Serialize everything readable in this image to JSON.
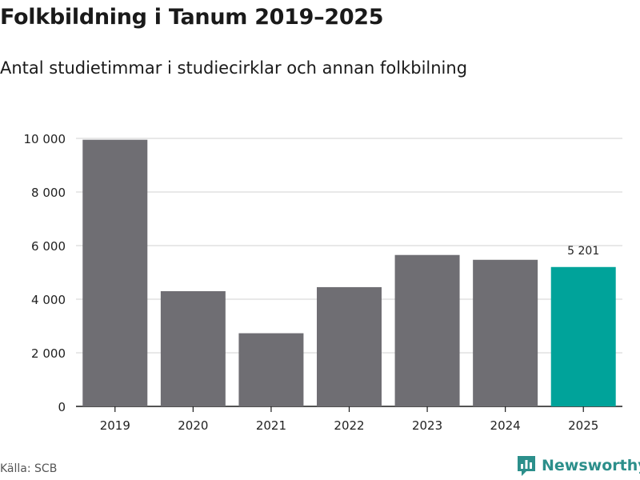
{
  "header": {
    "title": "Folkbildning i Tanum 2019–2025",
    "subtitle": "Antal studietimmar i studiecirklar och annan folkbilning"
  },
  "footer": {
    "source": "Källa: SCB",
    "brand": "Newsworthy"
  },
  "colors": {
    "bar": "#6f6e73",
    "highlight": "#00a39a",
    "grid": "#d9d9d9",
    "brand": "#2c8f8b"
  },
  "icons": {
    "brand_logo": "bar-chart-badge-icon"
  },
  "chart_data": {
    "type": "bar",
    "title": "Folkbildning i Tanum 2019–2025",
    "subtitle": "Antal studietimmar i studiecirklar och annan folkbilning",
    "xlabel": "",
    "ylabel": "",
    "categories": [
      "2019",
      "2020",
      "2021",
      "2022",
      "2023",
      "2024",
      "2025"
    ],
    "values": [
      9950,
      4300,
      2730,
      4450,
      5650,
      5470,
      5201
    ],
    "highlight_index": 6,
    "data_labels": [
      {
        "index": 6,
        "text": "5 201"
      }
    ],
    "ylim": [
      0,
      10000
    ],
    "yticks": [
      0,
      2000,
      4000,
      6000,
      8000,
      10000
    ],
    "ytick_labels": [
      "0",
      "2 000",
      "4 000",
      "6 000",
      "8 000",
      "10 000"
    ],
    "grid": true,
    "legend": "none"
  }
}
